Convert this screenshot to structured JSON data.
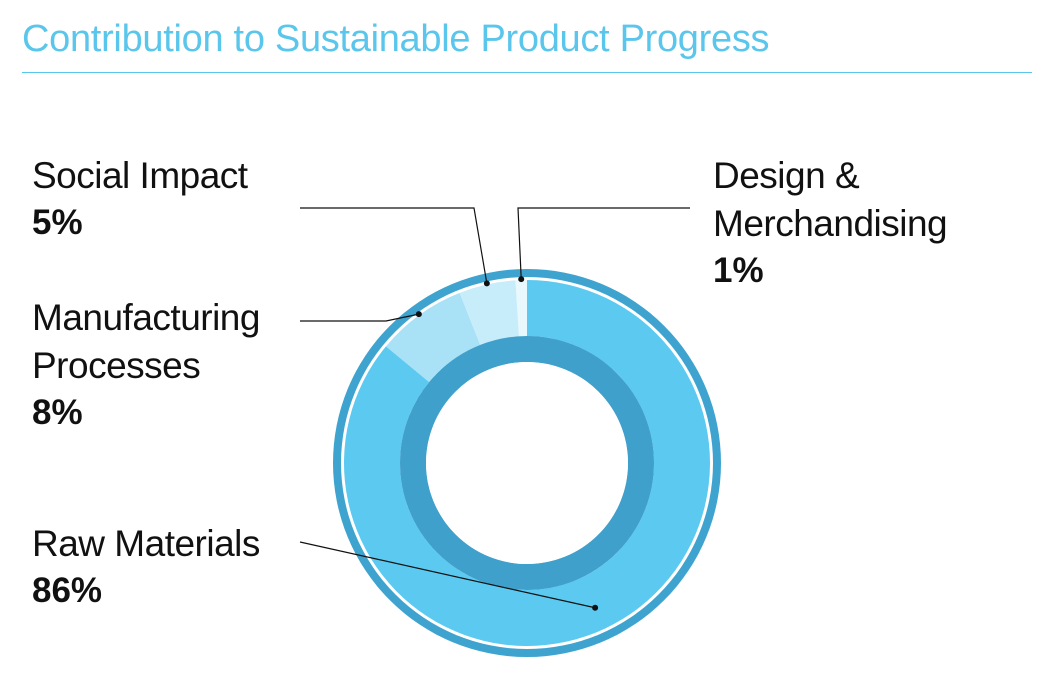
{
  "title": "Contribution to Sustainable Product Progress",
  "colors": {
    "title": "#5bc6ec",
    "outer_ring": "#3ea3cf",
    "inner_band": "#3fa0cc",
    "line": "#111111"
  },
  "chart_data": {
    "type": "pie",
    "title": "Contribution to Sustainable Product Progress",
    "variant": "donut",
    "slices": [
      {
        "label_lines": [
          "Raw Materials"
        ],
        "value": 86,
        "value_label": "86%",
        "color": "#5bc9f0"
      },
      {
        "label_lines": [
          "Manufacturing",
          "Processes"
        ],
        "value": 8,
        "value_label": "8%",
        "color": "#a9e1f6"
      },
      {
        "label_lines": [
          "Social Impact"
        ],
        "value": 5,
        "value_label": "5%",
        "color": "#c8edfa"
      },
      {
        "label_lines": [
          "Design &",
          "Merchandising"
        ],
        "value": 1,
        "value_label": "1%",
        "color": "#e9f8fd"
      }
    ]
  }
}
